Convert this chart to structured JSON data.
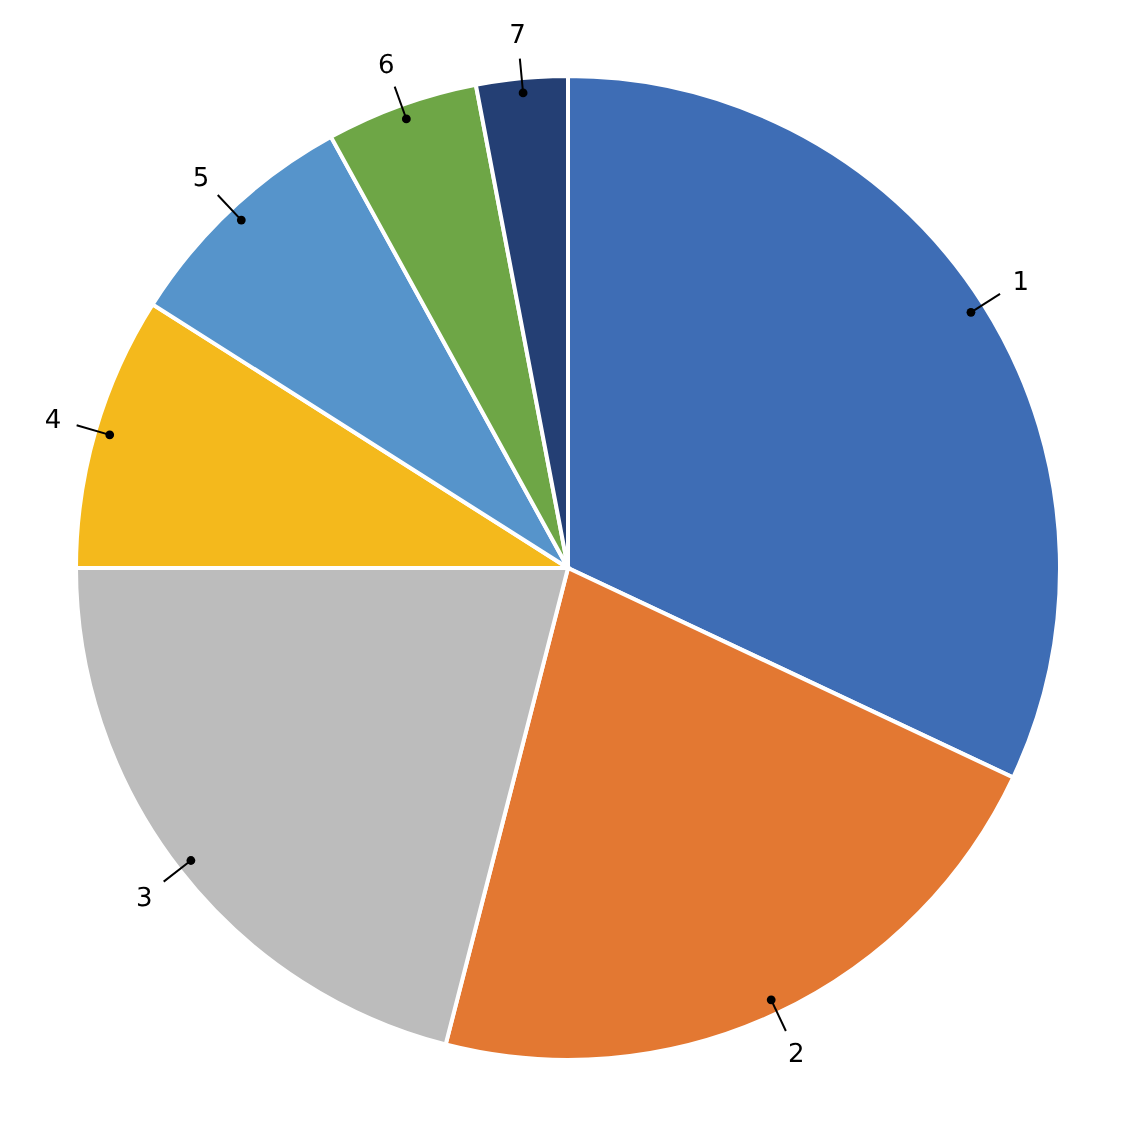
{
  "chart_data": {
    "type": "pie",
    "categories": [
      "1",
      "2",
      "3",
      "4",
      "5",
      "6",
      "7"
    ],
    "values": [
      32,
      22,
      21,
      9,
      8,
      5,
      3
    ],
    "colors": [
      "#3e6db5",
      "#e37832",
      "#bcbcbc",
      "#f4b91c",
      "#5694cb",
      "#6ea646",
      "#243f74"
    ]
  }
}
